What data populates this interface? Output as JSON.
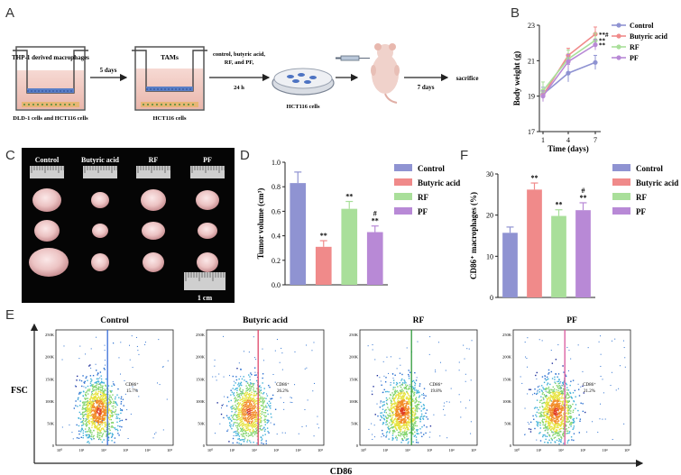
{
  "panel_letters": {
    "a": "A",
    "b": "B",
    "c": "C",
    "d": "D",
    "e": "E",
    "f": "F"
  },
  "schematic": {
    "well1_label": "THP-1 derived macrophages",
    "well1_caption": "DLD-1 cells and HCT116 cells",
    "arrow1_label": "5 days",
    "well2_label": "TAMs",
    "well2_caption": "HCT116 cells",
    "arrow2_label_line1": "control, butyric acid,",
    "arrow2_label_line2": "RF, and PF,",
    "arrow2_label_line3": "24 h",
    "dish_caption": "HCT116 cells",
    "arrow3_label": "7 days",
    "arrow4_label": "sacrifice"
  },
  "photo_panel": {
    "groups": [
      "Control",
      "Butyric acid",
      "RF",
      "PF"
    ],
    "scale_label": "1 cm"
  },
  "colors": {
    "control": "#8f93d2",
    "butyric": "#f08a8a",
    "rf": "#a9df9a",
    "pf": "#b889d6",
    "flow_control_gate": "#3b6fd8",
    "flow_butyric_gate": "#e0476a",
    "flow_rf_gate": "#2f9a3a",
    "flow_pf_gate": "#d9569c"
  },
  "chart_data": [
    {
      "id": "B",
      "type": "line",
      "xlabel": "Time (days)",
      "ylabel": "Body weight (g)",
      "x": [
        1,
        4,
        7
      ],
      "xticks": [
        "1",
        "4",
        "7"
      ],
      "ylim": [
        17,
        23
      ],
      "yticks": [
        "17",
        "19",
        "21",
        "23"
      ],
      "series": [
        {
          "name": "Control",
          "values": [
            19.1,
            20.3,
            20.9
          ],
          "errors": [
            0.4,
            0.5,
            0.4
          ],
          "key": "control",
          "annotation": ""
        },
        {
          "name": "Butyric acid",
          "values": [
            19.05,
            21.3,
            22.5
          ],
          "errors": [
            0.3,
            0.4,
            0.4
          ],
          "key": "butyric",
          "annotation": "**#"
        },
        {
          "name": "RF",
          "values": [
            19.3,
            21.1,
            22.15
          ],
          "errors": [
            0.5,
            0.5,
            0.4
          ],
          "key": "rf",
          "annotation": "**"
        },
        {
          "name": "PF",
          "values": [
            19.0,
            20.95,
            21.9
          ],
          "errors": [
            0.3,
            0.4,
            0.3
          ],
          "key": "pf",
          "annotation": "**"
        }
      ]
    },
    {
      "id": "D",
      "type": "bar",
      "ylabel": "Tumor volume (cm³)",
      "categories": [
        "Control",
        "Butyric acid",
        "RF",
        "PF"
      ],
      "values": [
        0.83,
        0.31,
        0.62,
        0.43
      ],
      "errors": [
        0.09,
        0.05,
        0.06,
        0.05
      ],
      "annotations": [
        "",
        "**",
        "**",
        "#\n**"
      ],
      "keys": [
        "control",
        "butyric",
        "rf",
        "pf"
      ],
      "ylim": [
        0,
        1.0
      ],
      "yticks": [
        "0.0",
        "0.2",
        "0.4",
        "0.6",
        "0.8",
        "1.0"
      ]
    },
    {
      "id": "F",
      "type": "bar",
      "ylabel": "CD86⁺ macrophages (%)",
      "categories": [
        "Control",
        "Butyric acid",
        "RF",
        "PF"
      ],
      "values": [
        15.7,
        26.2,
        19.8,
        21.2
      ],
      "errors": [
        1.4,
        1.6,
        1.5,
        1.8
      ],
      "annotations": [
        "",
        "**",
        "**",
        "#\n**"
      ],
      "keys": [
        "control",
        "butyric",
        "rf",
        "pf"
      ],
      "ylim": [
        0,
        30
      ],
      "yticks": [
        "0",
        "10",
        "20",
        "30"
      ]
    },
    {
      "id": "E",
      "type": "scatter",
      "xlabel": "CD86",
      "ylabel": "FSC",
      "yticks": [
        "0",
        "50K",
        "100K",
        "150K",
        "200K",
        "250K"
      ],
      "xticks": [
        "10⁰",
        "10¹",
        "10²",
        "10³",
        "10⁴",
        "10⁵"
      ],
      "panels": [
        {
          "title": "Control",
          "gate_label": "CD86⁺",
          "percent": "15.7%",
          "key": "flow_control_gate"
        },
        {
          "title": "Butyric acid",
          "gate_label": "CD86⁺",
          "percent": "26.2%",
          "key": "flow_butyric_gate"
        },
        {
          "title": "RF",
          "gate_label": "CD86⁺",
          "percent": "19.8%",
          "key": "flow_rf_gate"
        },
        {
          "title": "PF",
          "gate_label": "CD86⁺",
          "percent": "21.2%",
          "key": "flow_pf_gate"
        }
      ]
    }
  ]
}
